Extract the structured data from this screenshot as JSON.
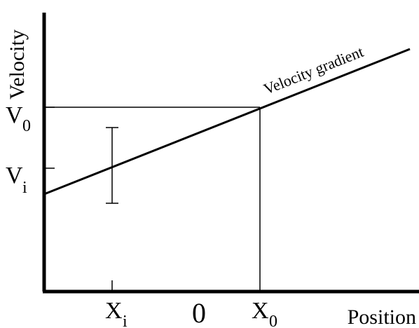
{
  "axes": {
    "y_label": "Velocity",
    "x_label": "Position",
    "x_zero": "0"
  },
  "ticks": {
    "v0_main": "V",
    "v0_sub": "0",
    "vi_main": "V",
    "vi_sub": "i",
    "xi_main": "X",
    "xi_sub": "i",
    "x0_main": "X",
    "x0_sub": "0"
  },
  "annotation": {
    "gradient_label": "Velocity gradient"
  },
  "colors": {
    "ink": "#000000",
    "background": "#ffffff"
  }
}
